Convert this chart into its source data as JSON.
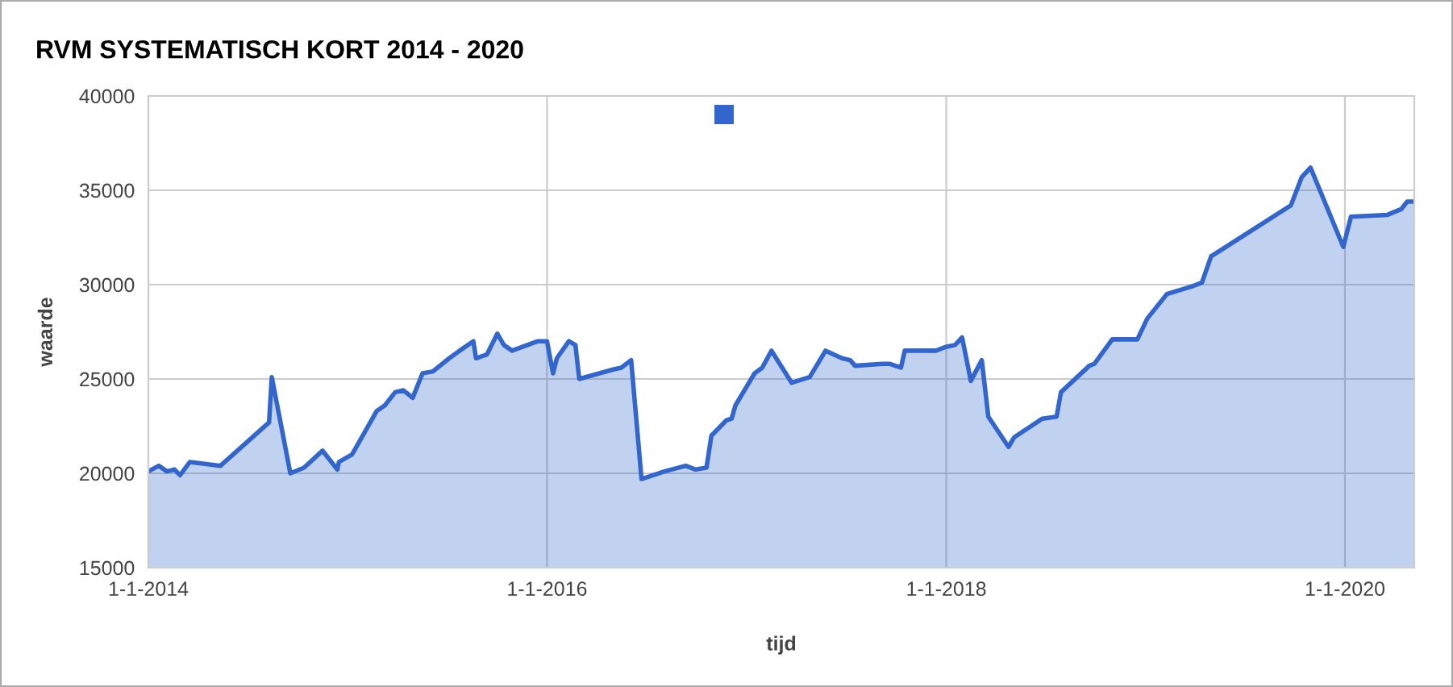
{
  "chart_data": {
    "type": "area",
    "title": "RVM SYSTEMATISCH KORT 2014 - 2020",
    "xlabel": "tijd",
    "ylabel": "waarde",
    "x": [
      "2014-01-01",
      "2014-01-20",
      "2014-02-04",
      "2014-02-18",
      "2014-02-28",
      "2014-03-18",
      "2014-05-13",
      "2014-08-10",
      "2014-08-15",
      "2014-09-18",
      "2014-10-13",
      "2014-11-16",
      "2014-12-13",
      "2014-12-16",
      "2015-01-09",
      "2015-02-23",
      "2015-03-10",
      "2015-03-29",
      "2015-04-13",
      "2015-04-30",
      "2015-05-18",
      "2015-06-06",
      "2015-07-06",
      "2015-07-25",
      "2015-08-19",
      "2015-08-24",
      "2015-09-13",
      "2015-10-02",
      "2015-10-14",
      "2015-10-29",
      "2015-11-26",
      "2015-12-15",
      "2016-01-01",
      "2016-01-12",
      "2016-01-19",
      "2016-02-10",
      "2016-02-22",
      "2016-02-29",
      "2016-05-01",
      "2016-05-16",
      "2016-06-03",
      "2016-06-22",
      "2016-08-03",
      "2016-09-11",
      "2016-09-29",
      "2016-10-19",
      "2016-10-28",
      "2016-11-24",
      "2016-12-04",
      "2016-12-11",
      "2017-01-15",
      "2017-01-29",
      "2017-02-15",
      "2017-03-24",
      "2017-04-26",
      "2017-05-25",
      "2017-06-24",
      "2017-07-09",
      "2017-07-18",
      "2017-09-06",
      "2017-09-20",
      "2017-10-10",
      "2017-10-17",
      "2017-12-13",
      "2017-12-31",
      "2018-01-17",
      "2018-01-30",
      "2018-02-15",
      "2018-03-07",
      "2018-03-19",
      "2018-04-25",
      "2018-05-05",
      "2018-06-26",
      "2018-07-22",
      "2018-07-30",
      "2018-09-20",
      "2018-09-29",
      "2018-11-01",
      "2018-12-17",
      "2019-01-04",
      "2019-02-09",
      "2019-03-26",
      "2019-04-14",
      "2019-05-01",
      "2019-09-24",
      "2019-10-14",
      "2019-10-30",
      "2019-12-29",
      "2020-01-12",
      "2020-03-19",
      "2020-04-13",
      "2020-04-24",
      "2020-05-07"
    ],
    "series": [
      {
        "color": "#3366cc",
        "values": [
          20100,
          20400,
          20100,
          20200,
          19900,
          20600,
          20400,
          22700,
          25100,
          20000,
          20300,
          21200,
          20200,
          20600,
          21000,
          23300,
          23600,
          24300,
          24400,
          24000,
          25300,
          25400,
          26100,
          26500,
          27000,
          26100,
          26300,
          27400,
          26800,
          26500,
          26800,
          27000,
          27000,
          25300,
          26100,
          27000,
          26800,
          25000,
          25500,
          25600,
          26000,
          19700,
          20100,
          20400,
          20200,
          20300,
          22000,
          22800,
          22900,
          23600,
          25300,
          25600,
          26500,
          24800,
          25100,
          26500,
          26100,
          26000,
          25700,
          25800,
          25800,
          25600,
          26500,
          26500,
          26700,
          26800,
          27200,
          24900,
          26000,
          23000,
          21400,
          21900,
          22900,
          23000,
          24300,
          25700,
          25800,
          27100,
          27100,
          28200,
          29500,
          29900,
          30100,
          31500,
          34200,
          35700,
          36200,
          32000,
          33600,
          33700,
          34000,
          34400,
          34400
        ]
      }
    ],
    "xlim": [
      "2014-01-01",
      "2020-05-07"
    ],
    "xticks": [
      {
        "value": "2014-01-01",
        "label": "1-1-2014"
      },
      {
        "value": "2016-01-01",
        "label": "1-1-2016"
      },
      {
        "value": "2018-01-01",
        "label": "1-1-2018"
      },
      {
        "value": "2020-01-01",
        "label": "1-1-2020"
      }
    ],
    "ylim": [
      15000,
      40000
    ],
    "yticks": [
      15000,
      20000,
      25000,
      30000,
      35000,
      40000
    ],
    "grid": true
  }
}
